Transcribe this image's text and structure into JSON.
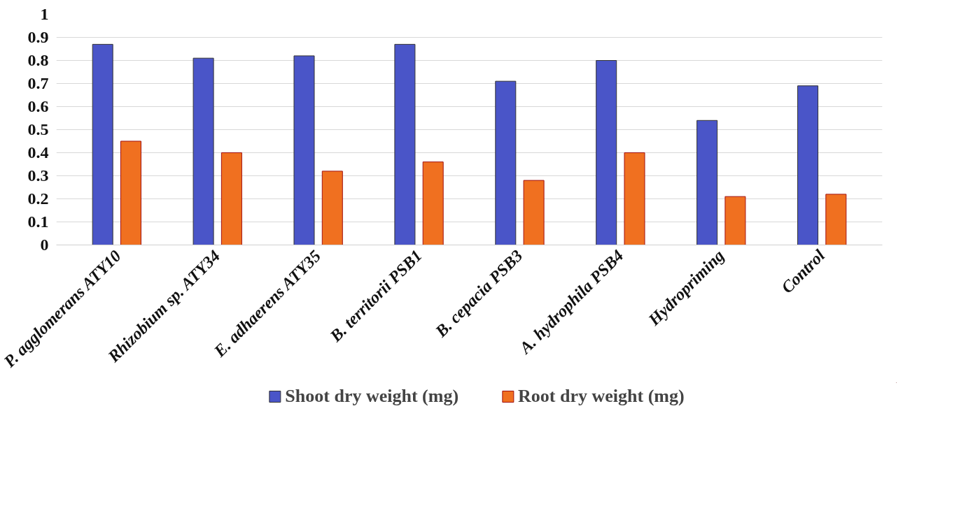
{
  "chart_data": {
    "type": "bar",
    "categories": [
      "P. agglomerans ATY10",
      "Rhizobium sp. ATY34",
      "E. adhaerens ATY35",
      "B. territorii PSB1",
      "B. cepacia PSB3",
      "A. hydrophila PSB4",
      "Hydropriming",
      "Control"
    ],
    "series": [
      {
        "name": "Shoot dry weight (mg)",
        "color": "#4a55c8",
        "values": [
          0.87,
          0.81,
          0.82,
          0.87,
          0.71,
          0.8,
          0.54,
          0.69
        ]
      },
      {
        "name": "Root dry weight (mg)",
        "color": "#f07020",
        "values": [
          0.45,
          0.4,
          0.32,
          0.36,
          0.28,
          0.4,
          0.21,
          0.22
        ]
      }
    ],
    "ylim": [
      0,
      1
    ],
    "yticks": [
      0,
      0.1,
      0.2,
      0.3,
      0.4,
      0.5,
      0.6,
      0.7,
      0.8,
      0.9,
      1
    ],
    "grid": "y",
    "legend": "bottom"
  }
}
